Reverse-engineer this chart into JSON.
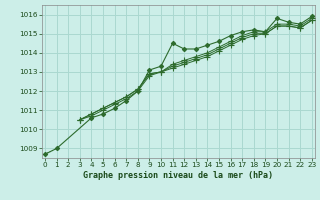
{
  "background_color": "#cceee8",
  "grid_color": "#aad8d0",
  "line_color": "#2d6b2d",
  "marker_color": "#2d6b2d",
  "title": "Graphe pression niveau de la mer (hPa)",
  "title_color": "#1a4a1a",
  "xlim": [
    -0.3,
    23.3
  ],
  "ylim": [
    1008.5,
    1016.5
  ],
  "yticks": [
    1009,
    1010,
    1011,
    1012,
    1013,
    1014,
    1015,
    1016
  ],
  "xticks": [
    0,
    1,
    2,
    3,
    4,
    5,
    6,
    7,
    8,
    9,
    10,
    11,
    12,
    13,
    14,
    15,
    16,
    17,
    18,
    19,
    20,
    21,
    22,
    23
  ],
  "series": [
    [
      1008.7,
      1009.0,
      null,
      null,
      1010.6,
      1010.8,
      1011.1,
      1011.5,
      1012.0,
      1013.1,
      1013.3,
      1014.5,
      1014.2,
      1014.2,
      1014.4,
      1014.6,
      1014.9,
      1015.1,
      1015.2,
      1015.1,
      1015.8,
      1015.6,
      1015.5,
      1015.9
    ],
    [
      null,
      null,
      null,
      1010.5,
      1010.8,
      1011.1,
      1011.4,
      1011.7,
      1012.1,
      1012.9,
      1013.0,
      1013.4,
      1013.6,
      1013.8,
      1014.0,
      1014.3,
      1014.6,
      1014.9,
      1015.1,
      1015.1,
      1015.5,
      1015.5,
      1015.4,
      1015.8
    ],
    [
      null,
      null,
      null,
      1010.5,
      1010.8,
      1011.1,
      1011.4,
      1011.7,
      1012.1,
      1012.9,
      1013.0,
      1013.3,
      1013.5,
      1013.7,
      1013.9,
      1014.2,
      1014.5,
      1014.8,
      1015.0,
      1015.0,
      1015.4,
      1015.4,
      1015.3,
      1015.7
    ],
    [
      null,
      null,
      null,
      1010.5,
      1010.7,
      1011.0,
      1011.3,
      1011.6,
      1012.0,
      1012.8,
      1013.0,
      1013.2,
      1013.4,
      1013.6,
      1013.8,
      1014.1,
      1014.4,
      1014.7,
      1014.9,
      1015.0,
      1015.4,
      1015.4,
      1015.3,
      1015.7
    ]
  ]
}
